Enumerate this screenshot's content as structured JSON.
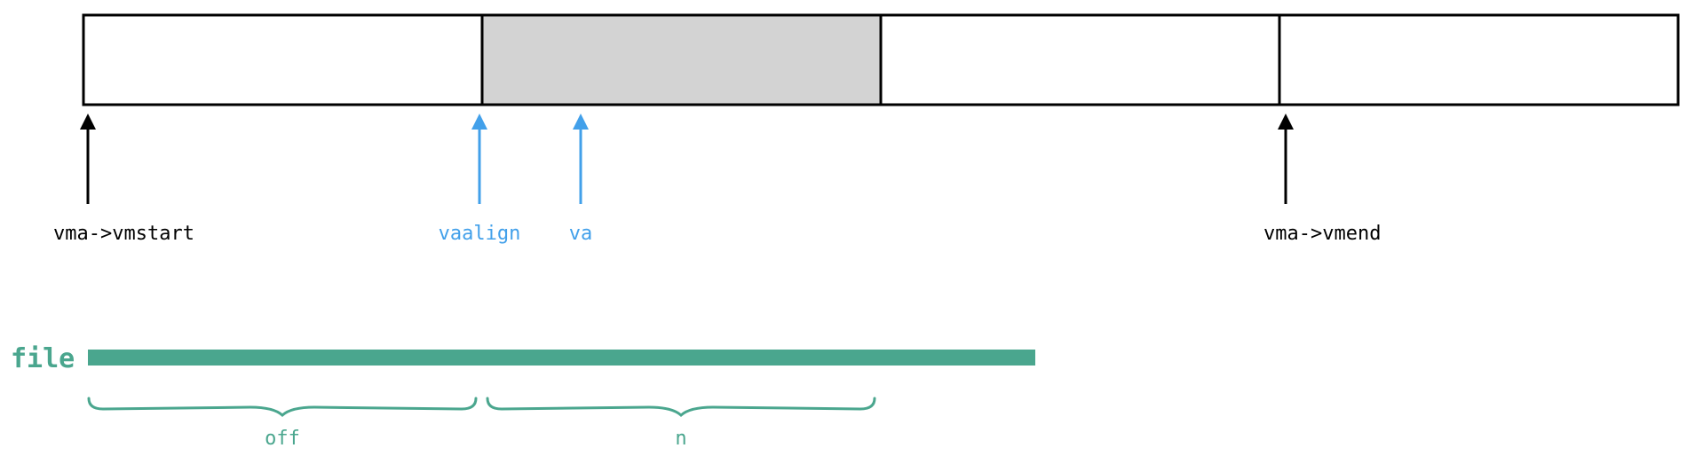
{
  "colors": {
    "stroke": "#000000",
    "page_fill": "#ffffff",
    "highlight_fill": "#d3d3d3",
    "pointer_blue": "#42a0ea",
    "file_green": "#4aa68e"
  },
  "memory": {
    "page_count": 4,
    "highlighted_page": 2
  },
  "labels": {
    "vmstart": "vma->vmstart",
    "vaalign": "vaalign",
    "va": "va",
    "vmend": "vma->vmend",
    "file": "file",
    "off": "off",
    "n": "n"
  }
}
